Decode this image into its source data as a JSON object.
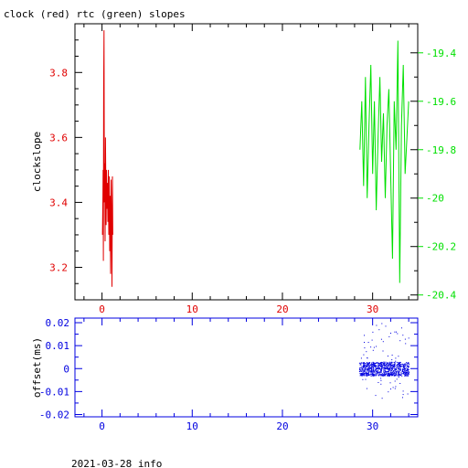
{
  "title": "clock (red) rtc (green) slopes",
  "footer": "2021-03-28 info",
  "colors": {
    "clock": "#e00000",
    "rtc": "#00e000",
    "offset": "#0000e0",
    "axis": "#000000"
  },
  "chart_data": [
    {
      "type": "line",
      "title": "clock (red) rtc (green) slopes",
      "xlabel": "",
      "ylabel": "clockslope",
      "xlim": [
        -3,
        35
      ],
      "xticks": [
        0,
        10,
        20,
        30
      ],
      "ylim_left": [
        3.1,
        3.95
      ],
      "yticks_left": [
        3.2,
        3.4,
        3.6,
        3.8
      ],
      "ylim_right": [
        -20.42,
        -19.28
      ],
      "yticks_right": [
        -19.4,
        -19.6,
        -19.8,
        -20,
        -20.2,
        -20.4
      ],
      "series": [
        {
          "name": "clock",
          "axis": "left",
          "points": [
            [
              0.05,
              3.3
            ],
            [
              0.1,
              3.42
            ],
            [
              0.12,
              3.5
            ],
            [
              0.15,
              3.22
            ],
            [
              0.18,
              3.75
            ],
            [
              0.22,
              3.93
            ],
            [
              0.26,
              3.4
            ],
            [
              0.3,
              3.52
            ],
            [
              0.34,
              3.28
            ],
            [
              0.38,
              3.6
            ],
            [
              0.42,
              3.45
            ],
            [
              0.46,
              3.33
            ],
            [
              0.5,
              3.5
            ],
            [
              0.55,
              3.38
            ],
            [
              0.6,
              3.46
            ],
            [
              0.65,
              3.34
            ],
            [
              0.7,
              3.5
            ],
            [
              0.75,
              3.3
            ],
            [
              0.8,
              3.48
            ],
            [
              0.85,
              3.25
            ],
            [
              0.9,
              3.42
            ],
            [
              0.95,
              3.18
            ],
            [
              1.0,
              3.47
            ],
            [
              1.05,
              3.36
            ],
            [
              1.1,
              3.14
            ],
            [
              1.15,
              3.48
            ],
            [
              1.2,
              3.3
            ]
          ]
        },
        {
          "name": "rtc",
          "axis": "right",
          "points": [
            [
              28.6,
              -19.8
            ],
            [
              28.8,
              -19.6
            ],
            [
              29.0,
              -19.95
            ],
            [
              29.2,
              -19.5
            ],
            [
              29.4,
              -20.0
            ],
            [
              29.6,
              -19.7
            ],
            [
              29.8,
              -19.45
            ],
            [
              30.0,
              -19.9
            ],
            [
              30.2,
              -19.6
            ],
            [
              30.4,
              -20.05
            ],
            [
              30.6,
              -19.75
            ],
            [
              30.8,
              -19.5
            ],
            [
              31.0,
              -19.85
            ],
            [
              31.2,
              -19.65
            ],
            [
              31.4,
              -20.0
            ],
            [
              31.6,
              -19.7
            ],
            [
              31.8,
              -19.55
            ],
            [
              32.0,
              -19.9
            ],
            [
              32.2,
              -20.25
            ],
            [
              32.4,
              -19.6
            ],
            [
              32.6,
              -19.8
            ],
            [
              32.8,
              -19.35
            ],
            [
              33.0,
              -20.35
            ],
            [
              33.2,
              -19.7
            ],
            [
              33.4,
              -19.45
            ],
            [
              33.6,
              -19.9
            ],
            [
              33.8,
              -19.75
            ],
            [
              34.0,
              -19.6
            ]
          ]
        }
      ]
    },
    {
      "type": "scatter",
      "xlabel": "",
      "ylabel": "offset(ms)",
      "xlim": [
        -3,
        35
      ],
      "xticks": [
        0,
        10,
        20,
        30
      ],
      "ylim": [
        -0.021,
        0.022
      ],
      "yticks": [
        0.02,
        0.01,
        0,
        -0.01,
        -0.02
      ],
      "ytick_labels": [
        "0.02",
        "0.01",
        "0",
        "-0.01",
        "-0.02"
      ],
      "series": [
        {
          "name": "offset",
          "x_range": [
            28.5,
            34.0
          ],
          "band": [
            -0.003,
            0.003
          ],
          "spread": [
            -0.013,
            0.02
          ]
        }
      ]
    }
  ]
}
